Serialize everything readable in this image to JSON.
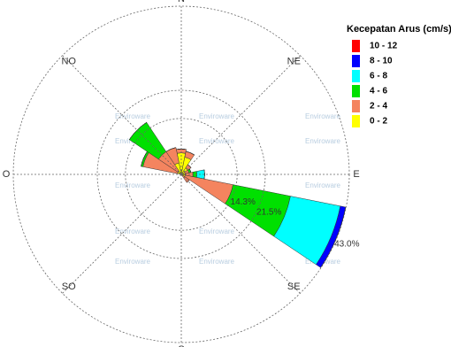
{
  "chart_data": {
    "type": "rose",
    "categories": [
      "N",
      null,
      "NE",
      null,
      "E",
      null,
      "SE",
      null,
      "S",
      null,
      "SO",
      null,
      "O",
      null,
      "NO",
      null
    ],
    "legend_title": "Kecepatan Arus (cm/s)",
    "watermark": "Enviroware",
    "series": [
      {
        "name": "10 - 12",
        "color": "#ff0000",
        "values": [
          0,
          0,
          0,
          0,
          0,
          0,
          0,
          0,
          0,
          0,
          0,
          0,
          0,
          0,
          0,
          0
        ]
      },
      {
        "name": "8 - 10",
        "color": "#0000ff",
        "values": [
          0,
          0,
          0,
          0,
          0,
          1.4,
          0,
          0,
          0,
          0,
          0,
          0,
          0,
          0,
          0,
          0
        ]
      },
      {
        "name": "6 - 8",
        "color": "#00ffff",
        "values": [
          0,
          0,
          0,
          0,
          2,
          13,
          0,
          0,
          0,
          0,
          0,
          0,
          0,
          0,
          0,
          0
        ]
      },
      {
        "name": "4 - 6",
        "color": "#00e000",
        "values": [
          0,
          0,
          0,
          0.5,
          1,
          15,
          0,
          0,
          0,
          0,
          0,
          0,
          0,
          0.5,
          9,
          0
        ]
      },
      {
        "name": "2 - 4",
        "color": "#f4845f",
        "values": [
          1,
          1.5,
          1,
          1,
          2,
          12.5,
          2,
          0,
          0,
          0,
          0,
          0,
          0,
          9,
          6,
          4
        ]
      },
      {
        "name": "0 - 2",
        "color": "#ffff00",
        "values": [
          5.5,
          4.5,
          2,
          1,
          1,
          1,
          0.5,
          0,
          0,
          0,
          0,
          0,
          0,
          1,
          1,
          3
        ]
      }
    ],
    "rlim": [
      0,
      43
    ],
    "rticks": [
      {
        "value": 14.3,
        "label": "14.3%"
      },
      {
        "value": 21.5,
        "label": "21.5%"
      },
      {
        "value": 43.0,
        "label": "43.0%"
      }
    ],
    "grid": true
  }
}
